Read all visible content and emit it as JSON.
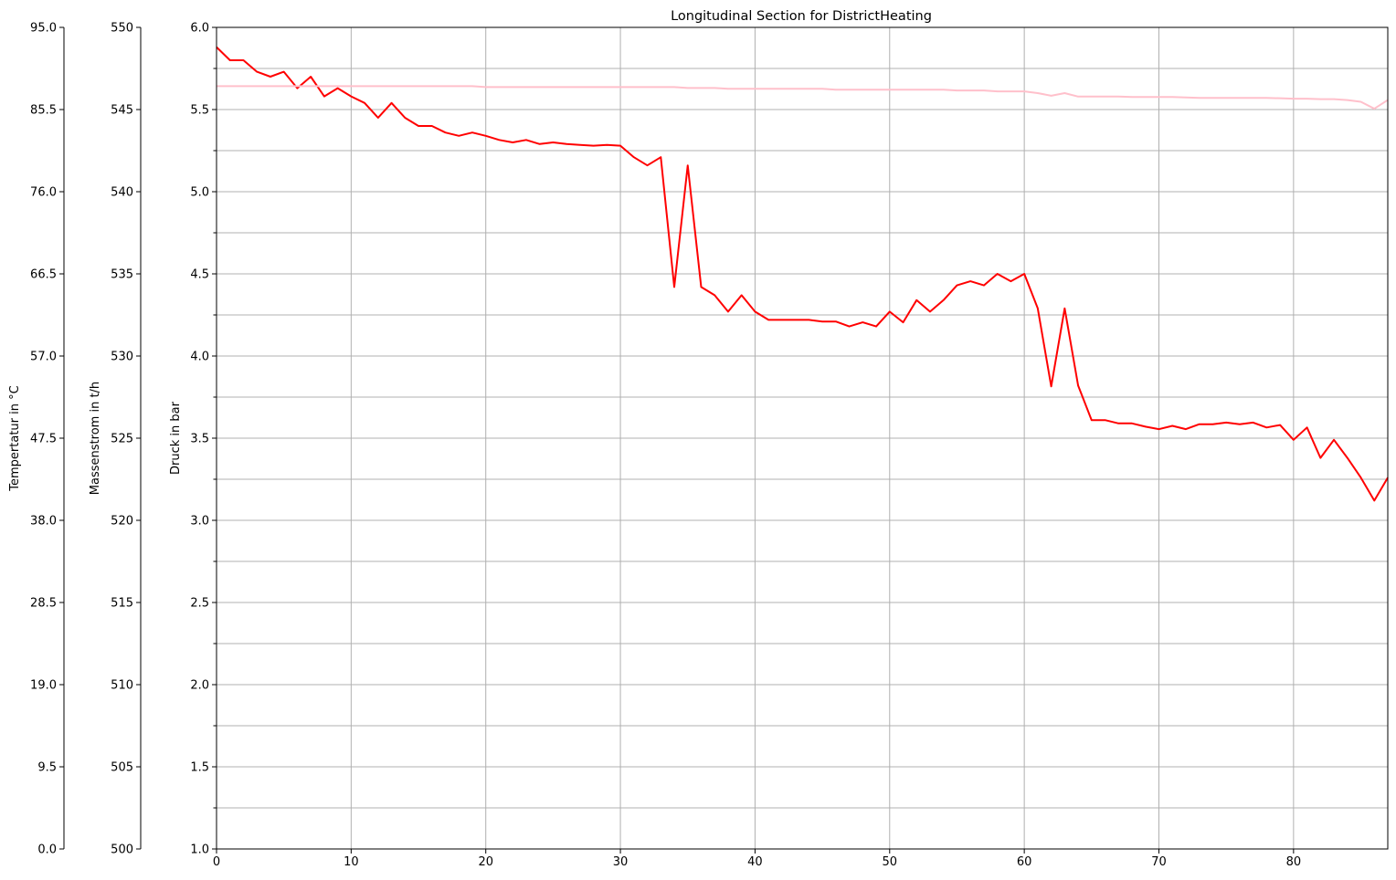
{
  "chart_data": {
    "type": "line",
    "title": "Longitudinal Section for DistrictHeating",
    "xlim": [
      0,
      87
    ],
    "x_ticks": [
      "0",
      "10",
      "20",
      "30",
      "40",
      "50",
      "60",
      "70",
      "80"
    ],
    "grid": true,
    "axes": {
      "pressure": {
        "label": "Druck in bar",
        "ylim": [
          1.0,
          6.0
        ],
        "ticks": [
          "1.0",
          "1.5",
          "2.0",
          "2.5",
          "3.0",
          "3.5",
          "4.0",
          "4.5",
          "5.0",
          "5.5",
          "6.0"
        ],
        "minor_step": 0.25
      },
      "massflow": {
        "label": "Massenstrom in t/h",
        "ylim": [
          500,
          550
        ],
        "ticks": [
          "500",
          "505",
          "510",
          "515",
          "520",
          "525",
          "530",
          "535",
          "540",
          "545",
          "550"
        ]
      },
      "temperature": {
        "label": "Tempertatur in °C",
        "ylim": [
          0.0,
          95.0
        ],
        "ticks": [
          "0.0",
          "9.5",
          "19.0",
          "28.5",
          "38.0",
          "47.5",
          "57.0",
          "66.5",
          "76.0",
          "85.5",
          "95.0"
        ]
      }
    },
    "series": [
      {
        "color": "#ff0000",
        "axis": "pressure",
        "values": [
          5.88,
          5.8,
          5.8,
          5.73,
          5.7,
          5.73,
          5.63,
          5.7,
          5.58,
          5.63,
          5.58,
          5.54,
          5.45,
          5.54,
          5.45,
          5.4,
          5.4,
          5.36,
          5.34,
          5.36,
          5.34,
          5.315,
          5.3,
          5.315,
          5.29,
          5.3,
          5.29,
          5.285,
          5.28,
          5.285,
          5.28,
          5.21,
          5.16,
          5.21,
          4.42,
          5.16,
          4.42,
          4.37,
          4.27,
          4.37,
          4.27,
          4.22,
          4.22,
          4.22,
          4.22,
          4.21,
          4.21,
          4.18,
          4.205,
          4.18,
          4.27,
          4.205,
          4.34,
          4.27,
          4.34,
          4.43,
          4.455,
          4.43,
          4.5,
          4.455,
          4.5,
          4.29,
          3.815,
          4.29,
          3.82,
          3.61,
          3.61,
          3.59,
          3.59,
          3.57,
          3.555,
          3.575,
          3.555,
          3.585,
          3.585,
          3.595,
          3.585,
          3.595,
          3.565,
          3.58,
          3.49,
          3.565,
          3.38,
          3.49,
          3.38,
          3.26,
          3.12,
          3.26
        ]
      },
      {
        "color": "#ffc0cb",
        "axis": "temperature",
        "values": [
          88.2,
          88.2,
          88.2,
          88.2,
          88.2,
          88.2,
          88.2,
          88.2,
          88.2,
          88.2,
          88.2,
          88.2,
          88.2,
          88.2,
          88.2,
          88.2,
          88.2,
          88.2,
          88.2,
          88.2,
          88.1,
          88.1,
          88.1,
          88.1,
          88.1,
          88.1,
          88.1,
          88.1,
          88.1,
          88.1,
          88.1,
          88.1,
          88.1,
          88.1,
          88.1,
          88.0,
          88.0,
          88.0,
          87.9,
          87.9,
          87.9,
          87.9,
          87.9,
          87.9,
          87.9,
          87.9,
          87.8,
          87.8,
          87.8,
          87.8,
          87.8,
          87.8,
          87.8,
          87.8,
          87.8,
          87.7,
          87.7,
          87.7,
          87.6,
          87.6,
          87.6,
          87.4,
          87.1,
          87.4,
          87.0,
          87.0,
          87.0,
          87.0,
          86.95,
          86.95,
          86.95,
          86.95,
          86.9,
          86.85,
          86.85,
          86.85,
          86.85,
          86.85,
          86.85,
          86.8,
          86.75,
          86.75,
          86.7,
          86.7,
          86.6,
          86.4,
          85.6,
          86.6
        ]
      }
    ]
  }
}
